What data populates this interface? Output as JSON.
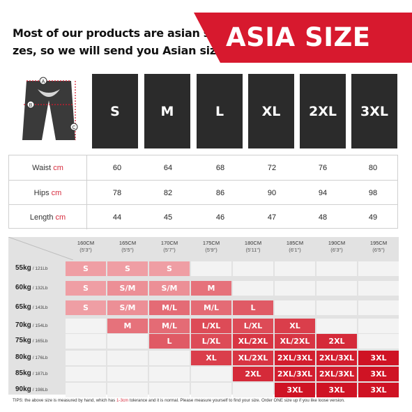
{
  "headline": {
    "line1": "Most of our products are asian si-",
    "line2": "zes, so we will send you Asian sizes"
  },
  "banner": {
    "label": "ASIA SIZE",
    "color": "#d7192e"
  },
  "diagram": {
    "markers": [
      "A",
      "B",
      "C"
    ]
  },
  "sizes": [
    "S",
    "M",
    "L",
    "XL",
    "2XL",
    "3XL"
  ],
  "measurements": {
    "unit": "cm",
    "rows": [
      {
        "label": "Waist",
        "values": [
          "60",
          "64",
          "68",
          "72",
          "76",
          "80"
        ]
      },
      {
        "label": "Hips",
        "values": [
          "78",
          "82",
          "86",
          "90",
          "94",
          "98"
        ]
      },
      {
        "label": "Length",
        "values": [
          "44",
          "45",
          "46",
          "47",
          "48",
          "49"
        ]
      }
    ]
  },
  "size_chart": {
    "heights": [
      {
        "cm": "160CM",
        "ft": "(5'3\")"
      },
      {
        "cm": "165CM",
        "ft": "(5'5\")"
      },
      {
        "cm": "170CM",
        "ft": "(5'7\")"
      },
      {
        "cm": "175CM",
        "ft": "(5'9\")"
      },
      {
        "cm": "180CM",
        "ft": "(5'11\")"
      },
      {
        "cm": "185CM",
        "ft": "(6'1\")"
      },
      {
        "cm": "190CM",
        "ft": "(6'3\")"
      },
      {
        "cm": "195CM",
        "ft": "(6'5\")"
      }
    ],
    "weights": [
      {
        "kg": "55kg",
        "lb": "/ 121Lb"
      },
      {
        "kg": "60kg",
        "lb": "/ 132Lb"
      },
      {
        "kg": "65kg",
        "lb": "/ 143Lb"
      },
      {
        "kg": "70kg",
        "lb": "/ 154Lb"
      },
      {
        "kg": "75kg",
        "lb": "/ 165Lb"
      },
      {
        "kg": "80kg",
        "lb": "/ 176Lb"
      },
      {
        "kg": "85kg",
        "lb": "/ 187Lb"
      },
      {
        "kg": "90kg",
        "lb": "/ 198Lb"
      }
    ],
    "cells": [
      [
        "S",
        "S",
        "S",
        "",
        "",
        "",
        "",
        ""
      ],
      [
        "S",
        "S/M",
        "S/M",
        "M",
        "",
        "",
        "",
        ""
      ],
      [
        "S",
        "S/M",
        "M/L",
        "M/L",
        "L",
        "",
        "",
        ""
      ],
      [
        "",
        "M",
        "M/L",
        "L/XL",
        "L/XL",
        "XL",
        "",
        ""
      ],
      [
        "",
        "",
        "L",
        "L/XL",
        "XL/2XL",
        "XL/2XL",
        "2XL",
        ""
      ],
      [
        "",
        "",
        "",
        "XL",
        "XL/2XL",
        "2XL/3XL",
        "2XL/3XL",
        "3XL"
      ],
      [
        "",
        "",
        "",
        "",
        "2XL",
        "2XL/3XL",
        "2XL/3XL",
        "3XL"
      ],
      [
        "",
        "",
        "",
        "",
        "",
        "3XL",
        "3XL",
        "3XL"
      ]
    ],
    "cell_colors": {
      "S": "#ef9ea4",
      "S/M": "#ec8f96",
      "M": "#e6727b",
      "M/L": "#e46b75",
      "L": "#e05a65",
      "L/XL": "#dd4b57",
      "XL": "#da3e4b",
      "XL/2XL": "#d83543",
      "2XL": "#d52a39",
      "2XL/3XL": "#d21e2e",
      "3XL": "#cf1324"
    }
  },
  "tips": {
    "prefix": "TIPS:  the above size is measured by hand, which has ",
    "tolerance": "1-3cm",
    "suffix": " tolerance and it is normal. Please measure yourself to find your size. Order ONE size up if you like loose version."
  }
}
